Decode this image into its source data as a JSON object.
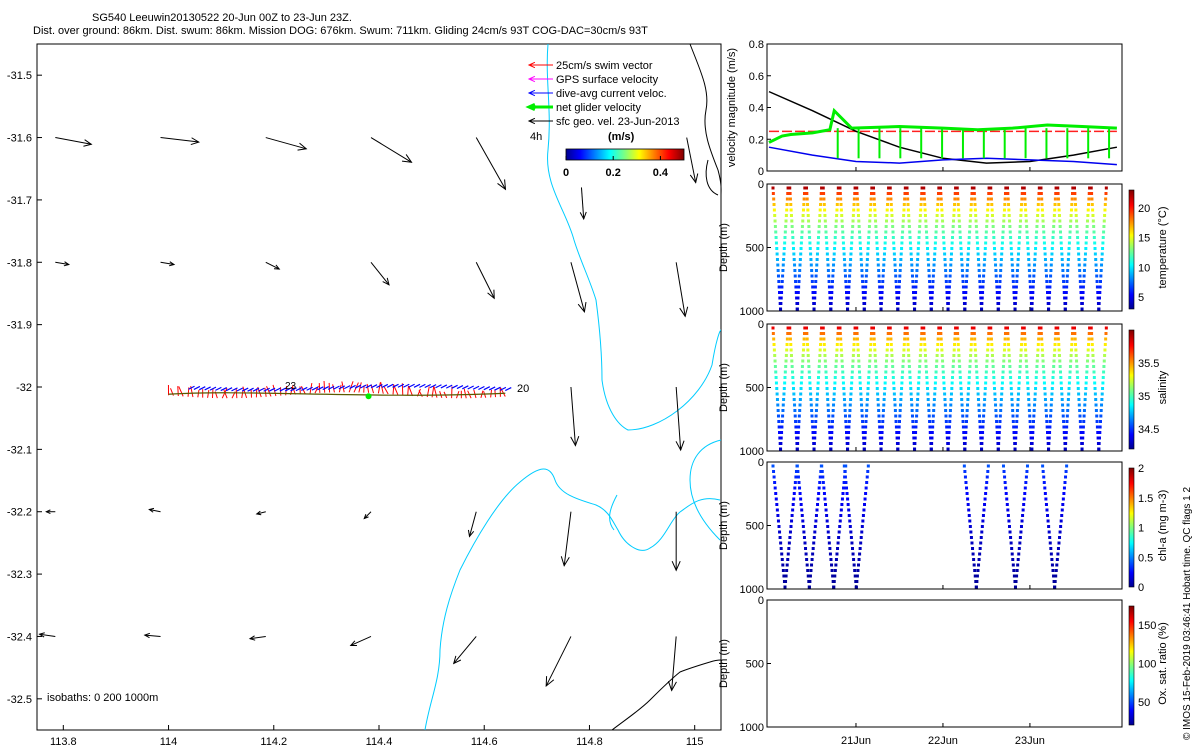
{
  "header": {
    "line1": "SG540 Leeuwin20130522 20-Jun 00Z to 23-Jun 23Z.",
    "line2": "Dist. over ground: 86km. Dist. swum: 86km. Mission DOG: 676km. Swum: 711km. Gliding 24cm/s 93T COG-DAC=30cm/s 93T"
  },
  "side_credit": "© IMOS 15-Feb-2019 03:46:41 Hobart time. QC flags 1  2",
  "colors": {
    "swim": "#ff0000",
    "gps": "#ff00ff",
    "dac": "#0000ff",
    "net": "#00ee00",
    "sfc": "#000000",
    "coast": "#00ccff",
    "red_line": "#ff2020"
  },
  "chart_data": [
    {
      "type": "map",
      "name": "track-map",
      "xlim": [
        113.75,
        115.05
      ],
      "ylim": [
        -32.55,
        -31.45
      ],
      "x_ticks": [
        "113.8",
        "114",
        "114.2",
        "114.4",
        "114.6",
        "114.8",
        "115"
      ],
      "y_ticks": [
        "-31.5",
        "-31.6",
        "-31.7",
        "-31.8",
        "-31.9",
        "-32",
        "-32.1",
        "-32.2",
        "-32.3",
        "-32.4",
        "-32.5"
      ],
      "legend": {
        "entries": [
          {
            "label": "25cm/s swim vector",
            "color": "#ff0000"
          },
          {
            "label": "GPS surface velocity",
            "color": "#ff00ff"
          },
          {
            "label": "dive-avg current veloc.",
            "color": "#0000ff"
          },
          {
            "label": "net glider velocity",
            "color": "#00ee00"
          },
          {
            "label": "sfc geo. vel. 23-Jun-2013",
            "color": "#000000"
          }
        ],
        "interval_label": "4h"
      },
      "colorbar": {
        "title": "(m/s)",
        "ticks": [
          "0",
          "0.2",
          "0.4"
        ],
        "range": [
          0,
          0.5
        ]
      },
      "isobath_label": "isobaths: 0   200  1000m",
      "track_labels": [
        "23",
        "20"
      ],
      "sfc_vectors": [
        {
          "x": 113.8,
          "y": -31.6,
          "u": 0.8,
          "v": -0.15
        },
        {
          "x": 114.0,
          "y": -31.6,
          "u": 0.85,
          "v": -0.1
        },
        {
          "x": 114.2,
          "y": -31.6,
          "u": 0.9,
          "v": -0.25
        },
        {
          "x": 114.4,
          "y": -31.6,
          "u": 0.9,
          "v": -0.55
        },
        {
          "x": 114.6,
          "y": -31.6,
          "u": 0.65,
          "v": -1.15
        },
        {
          "x": 114.8,
          "y": -31.68,
          "u": 0.05,
          "v": -0.7
        },
        {
          "x": 115.0,
          "y": -31.6,
          "u": 0.2,
          "v": -1.0
        },
        {
          "x": 113.8,
          "y": -31.8,
          "u": 0.3,
          "v": -0.05
        },
        {
          "x": 114.0,
          "y": -31.8,
          "u": 0.3,
          "v": -0.05
        },
        {
          "x": 114.2,
          "y": -31.8,
          "u": 0.3,
          "v": -0.15
        },
        {
          "x": 114.4,
          "y": -31.8,
          "u": 0.4,
          "v": -0.5
        },
        {
          "x": 114.6,
          "y": -31.8,
          "u": 0.4,
          "v": -0.8
        },
        {
          "x": 114.78,
          "y": -31.8,
          "u": 0.3,
          "v": -1.1
        },
        {
          "x": 114.98,
          "y": -31.8,
          "u": 0.2,
          "v": -1.2
        },
        {
          "x": 114.78,
          "y": -32.0,
          "u": 0.1,
          "v": -1.3
        },
        {
          "x": 114.98,
          "y": -32.0,
          "u": 0.1,
          "v": -1.4
        },
        {
          "x": 113.8,
          "y": -32.2,
          "u": -0.2,
          "v": 0.0
        },
        {
          "x": 114.0,
          "y": -32.2,
          "u": -0.25,
          "v": 0.05
        },
        {
          "x": 114.2,
          "y": -32.2,
          "u": -0.2,
          "v": -0.05
        },
        {
          "x": 114.4,
          "y": -32.2,
          "u": -0.15,
          "v": -0.15
        },
        {
          "x": 114.6,
          "y": -32.2,
          "u": -0.15,
          "v": -0.55
        },
        {
          "x": 114.78,
          "y": -32.2,
          "u": -0.15,
          "v": -1.2
        },
        {
          "x": 114.98,
          "y": -32.2,
          "u": 0.0,
          "v": -1.3
        },
        {
          "x": 113.8,
          "y": -32.4,
          "u": -0.35,
          "v": 0.05
        },
        {
          "x": 114.0,
          "y": -32.4,
          "u": -0.35,
          "v": 0.03
        },
        {
          "x": 114.2,
          "y": -32.4,
          "u": -0.35,
          "v": -0.05
        },
        {
          "x": 114.4,
          "y": -32.4,
          "u": -0.45,
          "v": -0.2
        },
        {
          "x": 114.6,
          "y": -32.4,
          "u": -0.5,
          "v": -0.6
        },
        {
          "x": 114.78,
          "y": -32.4,
          "u": -0.55,
          "v": -1.1
        },
        {
          "x": 114.98,
          "y": -32.4,
          "u": -0.1,
          "v": -1.2
        }
      ],
      "track": {
        "lon_start": 114.0,
        "lon_end": 114.64,
        "lat": -32.01
      }
    },
    {
      "type": "line",
      "name": "velocity-panel",
      "ylabel": "velocity magnitude (m/s)",
      "ylim": [
        0,
        0.8
      ],
      "y_ticks": [
        "0",
        "0.2",
        "0.4",
        "0.6",
        "0.8"
      ],
      "series": [
        {
          "name": "swim",
          "color": "#ff2020",
          "x": [
            0,
            4
          ],
          "values": [
            0.25,
            0.25
          ]
        },
        {
          "name": "sfc geo",
          "color": "#000000",
          "x": [
            0,
            0.5,
            1,
            1.5,
            2,
            2.5,
            3,
            3.5,
            4
          ],
          "values": [
            0.5,
            0.38,
            0.25,
            0.15,
            0.08,
            0.05,
            0.06,
            0.1,
            0.15
          ]
        },
        {
          "name": "dac",
          "color": "#0000ee",
          "x": [
            0,
            0.5,
            1,
            1.5,
            2,
            2.5,
            3,
            3.5,
            4
          ],
          "values": [
            0.15,
            0.1,
            0.06,
            0.05,
            0.07,
            0.08,
            0.07,
            0.06,
            0.04
          ]
        },
        {
          "name": "net",
          "color": "#00ee00",
          "x": [
            0,
            0.15,
            0.25,
            0.5,
            0.7,
            0.75,
            0.95,
            1.5,
            2,
            2.4,
            2.8,
            3.2,
            3.6,
            4
          ],
          "values": [
            0.18,
            0.22,
            0.23,
            0.24,
            0.26,
            0.38,
            0.27,
            0.28,
            0.27,
            0.26,
            0.27,
            0.29,
            0.28,
            0.27
          ]
        }
      ]
    },
    {
      "type": "scatter",
      "name": "temperature-panel",
      "ylabel": "Depth (m)",
      "ylim": [
        0,
        1000
      ],
      "y_ticks": [
        "0",
        "500",
        "1000"
      ],
      "colorbar": {
        "label": "temperature (°C)",
        "ticks": [
          "5",
          "10",
          "15",
          "20"
        ],
        "range": [
          3,
          23
        ]
      },
      "dives": 20,
      "surface_value": 22,
      "deep_value": 4
    },
    {
      "type": "scatter",
      "name": "salinity-panel",
      "ylabel": "Depth (m)",
      "ylim": [
        0,
        1000
      ],
      "y_ticks": [
        "0",
        "500",
        "1000"
      ],
      "colorbar": {
        "label": "salinity",
        "ticks": [
          "34.5",
          "35",
          "35.5"
        ],
        "range": [
          34.2,
          36.0
        ]
      },
      "dives": 20,
      "surface_value": 35.8,
      "deep_value": 34.3
    },
    {
      "type": "scatter",
      "name": "chla-panel",
      "ylabel": "Depth (m)",
      "ylim": [
        0,
        1000
      ],
      "y_ticks": [
        "0",
        "500",
        "1000"
      ],
      "colorbar": {
        "label": "chl-a (mg m-3)",
        "ticks": [
          "0",
          "0.5",
          "1",
          "1.5",
          "2"
        ],
        "range": [
          0,
          2
        ]
      },
      "dive_starts_days": [
        0.0,
        0.28,
        0.56,
        0.82,
        2.2,
        2.65,
        3.1
      ],
      "surface_value": 0.4,
      "deep_value": 0.02
    },
    {
      "type": "scatter",
      "name": "oxygen-panel",
      "ylabel": "Depth (m)",
      "ylim": [
        0,
        1000
      ],
      "y_ticks": [
        "0",
        "500",
        "1000"
      ],
      "colorbar": {
        "label": "Ox. sat. ratio (%)",
        "ticks": [
          "50",
          "100",
          "150"
        ],
        "range": [
          20,
          175
        ]
      },
      "x_tick_labels": [
        "21Jun",
        "22Jun",
        "23Jun"
      ],
      "x_tick_days": [
        1,
        2,
        3
      ],
      "x_days_range": [
        0,
        4
      ]
    }
  ]
}
